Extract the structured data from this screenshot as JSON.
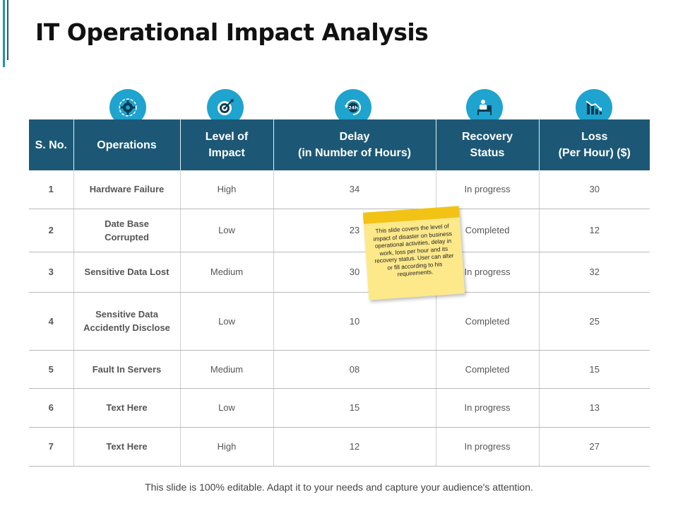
{
  "title": "IT Operational Impact Analysis",
  "headers": {
    "sno": "S. No.",
    "operations": "Operations",
    "level_line1": "Level of",
    "level_line2": "Impact",
    "delay_line1": "Delay",
    "delay_line2": "(in Number of Hours)",
    "recovery_line1": "Recovery",
    "recovery_line2": "Status",
    "loss_line1": "Loss",
    "loss_line2": "(Per Hour) ($)"
  },
  "icons": [
    "gear-icon",
    "target-icon",
    "clock-24h-icon",
    "recovery-bed-icon",
    "loss-chart-icon"
  ],
  "rows": [
    {
      "sno": "1",
      "op1": "Hardware Failure",
      "op2": "",
      "level": "High",
      "delay": "34",
      "status": "In progress",
      "loss": "30"
    },
    {
      "sno": "2",
      "op1": "Date Base",
      "op2": "Corrupted",
      "level": "Low",
      "delay": "23",
      "status": "Completed",
      "loss": "12"
    },
    {
      "sno": "3",
      "op1": "Sensitive Data Lost",
      "op2": "",
      "level": "Medium",
      "delay": "30",
      "status": "In progress",
      "loss": "32"
    },
    {
      "sno": "4",
      "op1": "Sensitive Data",
      "op2": "Accidently Disclose",
      "level": "Low",
      "delay": "10",
      "status": "Completed",
      "loss": "25"
    },
    {
      "sno": "5",
      "op1": "Fault In Servers",
      "op2": "",
      "level": "Medium",
      "delay": "08",
      "status": "Completed",
      "loss": "15"
    },
    {
      "sno": "6",
      "op1": "Text Here",
      "op2": "",
      "level": "Low",
      "delay": "15",
      "status": "In progress",
      "loss": "13"
    },
    {
      "sno": "7",
      "op1": "Text Here",
      "op2": "",
      "level": "High",
      "delay": "12",
      "status": "In progress",
      "loss": "27"
    }
  ],
  "sticky_note": "This slide covers the level of impact of disaster on business operational activities, delay in work, loss per hour and its recovery status. User can alter or fill according to his requirements.",
  "footer": "This slide is 100% editable. Adapt it to your needs and capture your audience's attention.",
  "colors": {
    "header_bg": "#1c5876",
    "icon_bg": "#1fa3cf",
    "high": "#d0392c",
    "low": "#3a8a3c",
    "medium": "#e8c21a",
    "sticky": "#fde98a"
  }
}
